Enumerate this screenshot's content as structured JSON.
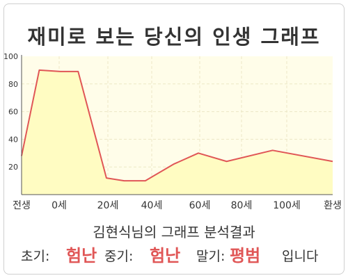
{
  "title": "재미로 보는 당신의 인생 그래프",
  "chart_data": {
    "type": "area",
    "x": [
      "전생",
      "0세",
      "20세",
      "40세",
      "60세",
      "80세",
      "100세",
      "환생"
    ],
    "y_ticks": [
      "20",
      "40",
      "60",
      "80",
      "100"
    ],
    "ylim": [
      0,
      100
    ],
    "grid": true,
    "series": [
      {
        "points": [
          {
            "x": -5,
            "y": 28
          },
          {
            "x": 0,
            "y": 90
          },
          {
            "x": 6,
            "y": 89
          },
          {
            "x": 11,
            "y": 89
          },
          {
            "x": 19,
            "y": 12
          },
          {
            "x": 24,
            "y": 10
          },
          {
            "x": 30,
            "y": 10
          },
          {
            "x": 38,
            "y": 22
          },
          {
            "x": 45,
            "y": 30
          },
          {
            "x": 53,
            "y": 24
          },
          {
            "x": 66,
            "y": 32
          },
          {
            "x": 83,
            "y": 24
          }
        ]
      }
    ],
    "colors": {
      "line": "#e05656",
      "fill": "#fffcc2",
      "plot_bg": "#fffde9",
      "grid": "#ece8c6"
    }
  },
  "result": {
    "subtitle": "김현식님의 그래프 분석결과",
    "early_label": "초기:",
    "early_value": "험난",
    "middle_label": "중기:",
    "middle_value": "험난",
    "late_label": "말기:",
    "late_value": "평범",
    "ending": "입니다"
  }
}
